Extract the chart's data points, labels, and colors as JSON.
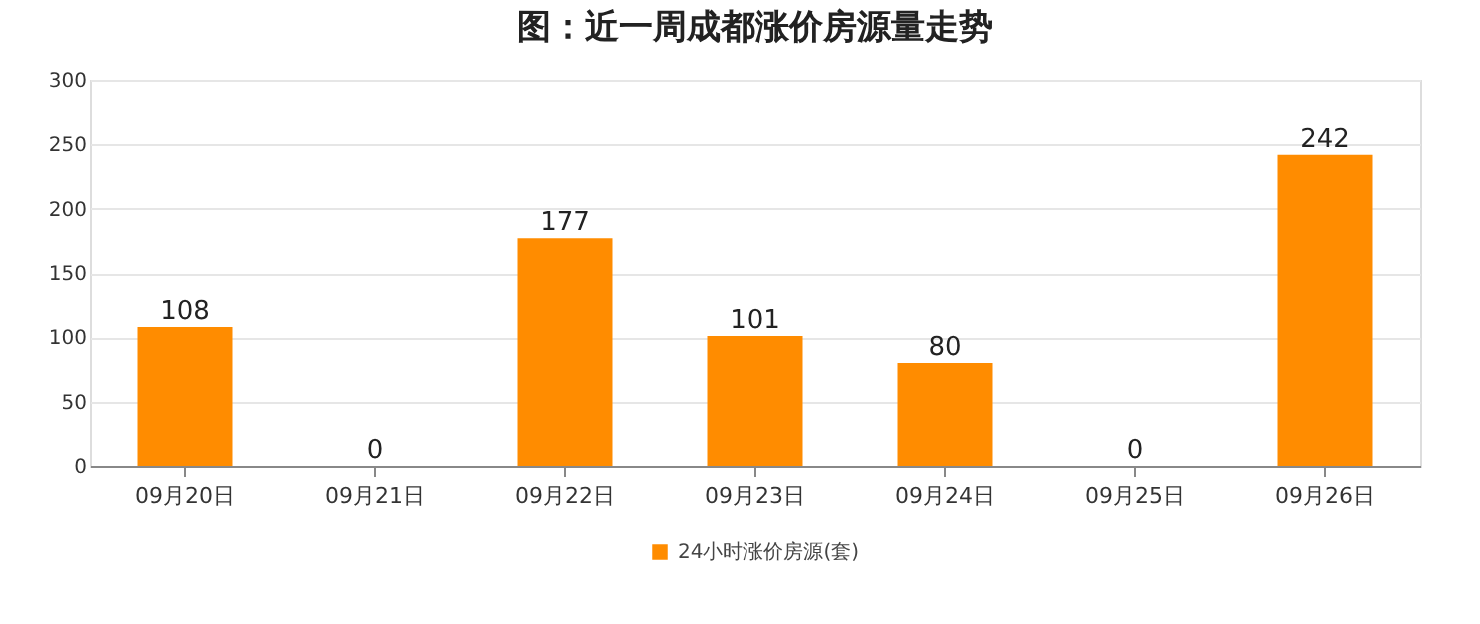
{
  "chart_data": {
    "type": "bar",
    "title": "图：近一周成都涨价房源量走势",
    "categories": [
      "09月20日",
      "09月21日",
      "09月22日",
      "09月23日",
      "09月24日",
      "09月25日",
      "09月26日"
    ],
    "series": [
      {
        "name": "24小时涨价房源(套)",
        "color": "#ff8c00",
        "values": [
          108,
          0,
          177,
          101,
          80,
          0,
          242
        ]
      }
    ],
    "ylim": [
      0,
      300
    ],
    "yticks": [
      0,
      50,
      100,
      150,
      200,
      250,
      300
    ],
    "grid": "y",
    "legend": "bottom",
    "data_labels": true
  }
}
